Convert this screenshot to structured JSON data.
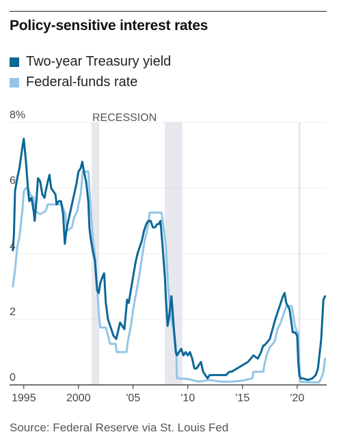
{
  "title": "Policy-sensitive interest rates",
  "source": "Source: Federal Reserve via St. Louis Fed",
  "colors": {
    "two_year": "#0a6796",
    "fed_funds": "#93c5e6",
    "recession": "#e6e8ee",
    "grid": "#cccccc"
  },
  "chart_data": {
    "type": "line",
    "title": "Policy-sensitive interest rates",
    "xlabel": "",
    "ylabel": "",
    "ylim": [
      0,
      8
    ],
    "xlim": [
      1993.7,
      2022.7
    ],
    "y_ticks": [
      {
        "value": 0,
        "label": "0"
      },
      {
        "value": 2,
        "label": "2"
      },
      {
        "value": 4,
        "label": "4"
      },
      {
        "value": 6,
        "label": "6"
      },
      {
        "value": 8,
        "label": "8%"
      }
    ],
    "x_ticks": [
      {
        "value": 1995,
        "label": "1995"
      },
      {
        "value": 2000,
        "label": "2000"
      },
      {
        "value": 2005,
        "label": "'05"
      },
      {
        "value": 2010,
        "label": "'10"
      },
      {
        "value": 2015,
        "label": "'15"
      },
      {
        "value": 2020,
        "label": "'20"
      }
    ],
    "grid": true,
    "legend": "top-left",
    "recessions": [
      {
        "start": 2001.2,
        "end": 2001.9
      },
      {
        "start": 2007.9,
        "end": 2009.5
      },
      {
        "start": 2020.1,
        "end": 2020.3
      }
    ],
    "recession_label": "RECESSION",
    "series": [
      {
        "name": "Two-year Treasury yield",
        "x": [
          1994.0,
          1994.1,
          1994.2,
          1994.4,
          1994.6,
          1994.9,
          1995.0,
          1995.2,
          1995.4,
          1995.5,
          1995.7,
          1995.9,
          1996.0,
          1996.15,
          1996.3,
          1996.5,
          1996.7,
          1996.9,
          1997.0,
          1997.2,
          1997.35,
          1997.5,
          1997.7,
          1997.9,
          1998.0,
          1998.2,
          1998.4,
          1998.6,
          1998.75,
          1998.9,
          1999.0,
          1999.2,
          1999.4,
          1999.6,
          1999.8,
          2000.0,
          2000.2,
          2000.35,
          2000.5,
          2000.7,
          2000.9,
          2001.0,
          2001.1,
          2001.3,
          2001.5,
          2001.7,
          2001.85,
          2002.0,
          2002.2,
          2002.35,
          2002.5,
          2002.7,
          2002.9,
          2003.0,
          2003.2,
          2003.45,
          2003.6,
          2003.8,
          2004.0,
          2004.2,
          2004.45,
          2004.6,
          2004.8,
          2005.0,
          2005.2,
          2005.4,
          2005.6,
          2005.8,
          2006.0,
          2006.2,
          2006.4,
          2006.6,
          2006.8,
          2007.0,
          2007.2,
          2007.35,
          2007.5,
          2007.7,
          2007.9,
          2008.0,
          2008.15,
          2008.3,
          2008.5,
          2008.6,
          2008.75,
          2008.9,
          2009.0,
          2009.2,
          2009.4,
          2009.6,
          2009.8,
          2010.0,
          2010.2,
          2010.4,
          2010.6,
          2010.8,
          2011.0,
          2011.2,
          2011.4,
          2011.6,
          2011.8,
          2012.0,
          2012.5,
          2013.0,
          2013.5,
          2013.8,
          2014.0,
          2014.5,
          2015.0,
          2015.5,
          2016.0,
          2016.4,
          2016.7,
          2016.9,
          2017.0,
          2017.5,
          2018.0,
          2018.4,
          2018.7,
          2018.85,
          2019.0,
          2019.3,
          2019.6,
          2019.8,
          2020.0,
          2020.1,
          2020.2,
          2020.3,
          2020.5,
          2021.0,
          2021.4,
          2021.7,
          2021.9,
          2022.0,
          2022.2,
          2022.4,
          2022.55
        ],
        "values": [
          4.1,
          4.6,
          5.9,
          6.3,
          6.6,
          7.3,
          7.5,
          6.8,
          5.9,
          5.6,
          5.7,
          5.3,
          5.0,
          5.6,
          6.3,
          6.2,
          5.8,
          5.7,
          5.9,
          6.2,
          6.4,
          6.0,
          5.9,
          5.8,
          5.5,
          5.6,
          5.6,
          5.2,
          4.3,
          4.7,
          4.9,
          5.2,
          5.5,
          5.8,
          6.1,
          6.5,
          6.6,
          6.8,
          6.5,
          6.2,
          5.6,
          4.8,
          4.5,
          4.1,
          3.8,
          2.9,
          2.8,
          3.1,
          3.3,
          3.4,
          2.5,
          2.0,
          1.8,
          1.7,
          1.5,
          1.4,
          1.6,
          1.9,
          1.8,
          1.7,
          2.6,
          2.5,
          2.9,
          3.3,
          3.7,
          4.0,
          4.2,
          4.4,
          4.7,
          4.9,
          5.0,
          5.0,
          4.8,
          4.8,
          4.9,
          4.9,
          5.0,
          4.2,
          3.3,
          2.6,
          1.8,
          2.1,
          2.7,
          2.3,
          1.6,
          1.0,
          0.9,
          1.0,
          1.1,
          0.9,
          1.0,
          0.9,
          1.0,
          0.8,
          0.5,
          0.5,
          0.6,
          0.7,
          0.4,
          0.3,
          0.2,
          0.3,
          0.3,
          0.3,
          0.3,
          0.4,
          0.4,
          0.5,
          0.6,
          0.7,
          0.9,
          0.8,
          1.0,
          1.2,
          1.2,
          1.4,
          2.0,
          2.4,
          2.7,
          2.8,
          2.5,
          2.3,
          1.6,
          1.6,
          1.5,
          0.7,
          0.3,
          0.2,
          0.2,
          0.15,
          0.2,
          0.3,
          0.5,
          0.8,
          1.4,
          2.6,
          2.7
        ]
      },
      {
        "name": "Federal-funds rate",
        "x": [
          1994.0,
          1994.2,
          1994.4,
          1994.6,
          1994.9,
          1995.0,
          1995.2,
          1995.4,
          1995.6,
          1995.9,
          1996.0,
          1996.5,
          1997.0,
          1997.2,
          1997.5,
          1998.0,
          1998.5,
          1998.8,
          1998.9,
          1999.0,
          1999.4,
          1999.6,
          1999.9,
          2000.0,
          2000.2,
          2000.4,
          2000.5,
          2000.9,
          2001.0,
          2001.1,
          2001.3,
          2001.5,
          2001.7,
          2001.9,
          2002.0,
          2002.5,
          2002.9,
          2003.0,
          2003.4,
          2003.5,
          2004.0,
          2004.4,
          2004.5,
          2004.8,
          2005.0,
          2005.5,
          2006.0,
          2006.4,
          2006.5,
          2007.0,
          2007.6,
          2007.7,
          2007.9,
          2008.0,
          2008.2,
          2008.5,
          2008.8,
          2008.95,
          2009.0,
          2010.0,
          2011.0,
          2012.0,
          2013.0,
          2014.0,
          2015.0,
          2015.9,
          2016.0,
          2016.9,
          2017.0,
          2017.2,
          2017.5,
          2017.9,
          2018.0,
          2018.2,
          2018.5,
          2018.7,
          2018.9,
          2019.0,
          2019.5,
          2019.6,
          2019.8,
          2020.0,
          2020.1,
          2020.2,
          2020.3,
          2021.0,
          2022.0,
          2022.2,
          2022.4,
          2022.55
        ],
        "values": [
          3.0,
          3.5,
          4.2,
          4.5,
          5.4,
          5.9,
          6.0,
          6.0,
          5.8,
          5.7,
          5.3,
          5.2,
          5.3,
          5.5,
          5.5,
          5.5,
          5.5,
          5.2,
          4.8,
          4.7,
          4.8,
          5.1,
          5.3,
          5.5,
          5.8,
          6.5,
          6.5,
          6.5,
          6.0,
          5.5,
          4.5,
          4.0,
          3.0,
          2.0,
          1.75,
          1.75,
          1.25,
          1.25,
          1.25,
          1.0,
          1.0,
          1.0,
          1.3,
          1.8,
          2.3,
          3.2,
          4.3,
          4.9,
          5.25,
          5.25,
          5.25,
          5.0,
          4.5,
          4.2,
          3.0,
          2.0,
          1.5,
          1.0,
          0.2,
          0.18,
          0.1,
          0.15,
          0.1,
          0.1,
          0.13,
          0.2,
          0.4,
          0.4,
          0.6,
          0.9,
          1.15,
          1.3,
          1.4,
          1.7,
          1.9,
          2.1,
          2.3,
          2.4,
          2.4,
          2.2,
          1.8,
          1.6,
          1.6,
          0.6,
          0.1,
          0.08,
          0.08,
          0.2,
          0.4,
          0.8
        ]
      }
    ]
  }
}
